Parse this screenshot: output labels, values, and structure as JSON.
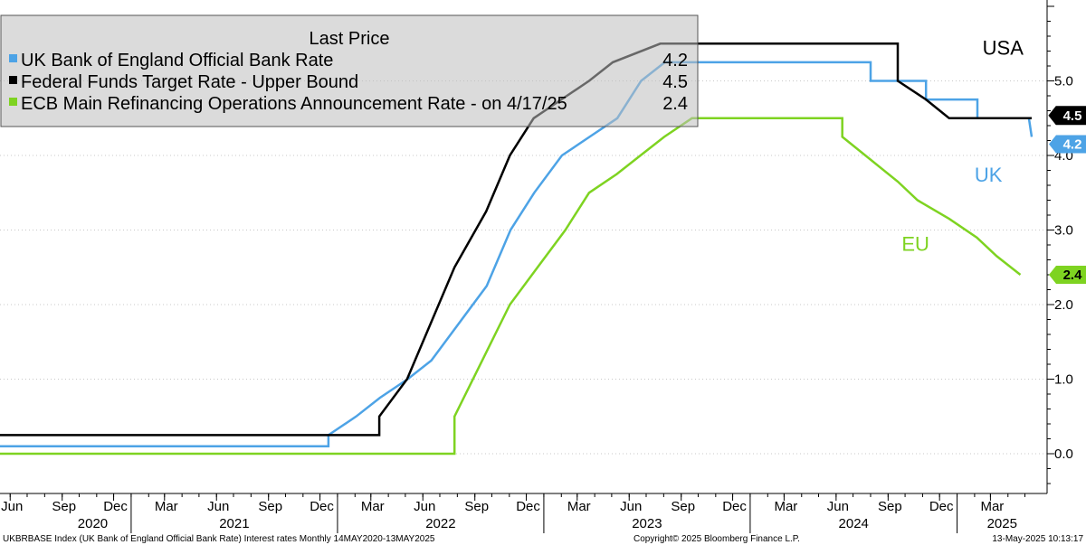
{
  "chart_data": {
    "type": "line",
    "legend": {
      "title": "Last Price",
      "placement": "top-left",
      "entries": [
        {
          "label": "UK Bank of England Official Bank Rate",
          "value": "4.2",
          "color": "#4da3e6"
        },
        {
          "label": "Federal Funds Target Rate - Upper Bound",
          "value": "4.5",
          "color": "#000000"
        },
        {
          "label": "ECB Main Refinancing Operations Announcement Rate -  on 4/17/25",
          "value": "2.4",
          "color": "#7ed321"
        }
      ]
    },
    "y_axis": {
      "position": "right",
      "range": [
        -0.5,
        6.0
      ],
      "ticks": [
        0.0,
        1.0,
        2.0,
        3.0,
        4.0,
        5.0
      ],
      "tick_labels": [
        "0.0",
        "1.0",
        "2.0",
        "3.0",
        "4.0",
        "5.0"
      ]
    },
    "x_axis": {
      "range": [
        "2020-05-14",
        "2025-05-13"
      ],
      "month_ticks": [
        {
          "date": "2020-06",
          "label": "Jun"
        },
        {
          "date": "2020-09",
          "label": "Sep"
        },
        {
          "date": "2020-12",
          "label": "Dec"
        },
        {
          "date": "2021-03",
          "label": "Mar"
        },
        {
          "date": "2021-06",
          "label": "Jun"
        },
        {
          "date": "2021-09",
          "label": "Sep"
        },
        {
          "date": "2021-12",
          "label": "Dec"
        },
        {
          "date": "2022-03",
          "label": "Mar"
        },
        {
          "date": "2022-06",
          "label": "Jun"
        },
        {
          "date": "2022-09",
          "label": "Sep"
        },
        {
          "date": "2022-12",
          "label": "Dec"
        },
        {
          "date": "2023-03",
          "label": "Mar"
        },
        {
          "date": "2023-06",
          "label": "Jun"
        },
        {
          "date": "2023-09",
          "label": "Sep"
        },
        {
          "date": "2023-12",
          "label": "Dec"
        },
        {
          "date": "2024-03",
          "label": "Mar"
        },
        {
          "date": "2024-06",
          "label": "Jun"
        },
        {
          "date": "2024-09",
          "label": "Sep"
        },
        {
          "date": "2024-12",
          "label": "Dec"
        },
        {
          "date": "2025-03",
          "label": "Mar"
        }
      ],
      "years": [
        "2020",
        "2021",
        "2022",
        "2023",
        "2024",
        "2025"
      ]
    },
    "grid": "horizontal dotted",
    "series": [
      {
        "key": "uk",
        "color": "#4da3e6",
        "last_value": "4.2",
        "points": [
          [
            "2020-05-14",
            0.1
          ],
          [
            "2021-12-16",
            0.1
          ],
          [
            "2021-12-16",
            0.25
          ],
          [
            "2022-02-03",
            0.5
          ],
          [
            "2022-03-17",
            0.75
          ],
          [
            "2022-05-05",
            1.0
          ],
          [
            "2022-06-16",
            1.25
          ],
          [
            "2022-08-04",
            1.75
          ],
          [
            "2022-09-22",
            2.25
          ],
          [
            "2022-11-03",
            3.0
          ],
          [
            "2022-12-15",
            3.5
          ],
          [
            "2023-02-02",
            4.0
          ],
          [
            "2023-03-23",
            4.25
          ],
          [
            "2023-05-11",
            4.5
          ],
          [
            "2023-06-22",
            5.0
          ],
          [
            "2023-08-03",
            5.25
          ],
          [
            "2024-08-01",
            5.25
          ],
          [
            "2024-08-01",
            5.0
          ],
          [
            "2024-11-07",
            5.0
          ],
          [
            "2024-11-07",
            4.75
          ],
          [
            "2025-02-06",
            4.75
          ],
          [
            "2025-02-06",
            4.5
          ],
          [
            "2025-05-08",
            4.5
          ],
          [
            "2025-05-13",
            4.25
          ]
        ]
      },
      {
        "key": "us",
        "color": "#000000",
        "last_value": "4.5",
        "points": [
          [
            "2020-05-14",
            0.25
          ],
          [
            "2022-03-16",
            0.25
          ],
          [
            "2022-03-16",
            0.5
          ],
          [
            "2022-05-04",
            1.0
          ],
          [
            "2022-06-15",
            1.75
          ],
          [
            "2022-07-27",
            2.5
          ],
          [
            "2022-09-21",
            3.25
          ],
          [
            "2022-11-02",
            4.0
          ],
          [
            "2022-12-14",
            4.5
          ],
          [
            "2023-02-01",
            4.75
          ],
          [
            "2023-03-22",
            5.0
          ],
          [
            "2023-05-03",
            5.25
          ],
          [
            "2023-07-26",
            5.5
          ],
          [
            "2024-09-18",
            5.5
          ],
          [
            "2024-09-18",
            5.0
          ],
          [
            "2024-11-07",
            4.75
          ],
          [
            "2024-12-18",
            4.5
          ],
          [
            "2025-05-13",
            4.5
          ]
        ]
      },
      {
        "key": "eu",
        "color": "#7ed321",
        "last_value": "2.4",
        "points": [
          [
            "2020-05-14",
            0.0
          ],
          [
            "2022-07-27",
            0.0
          ],
          [
            "2022-07-27",
            0.5
          ],
          [
            "2022-09-14",
            1.25
          ],
          [
            "2022-11-02",
            2.0
          ],
          [
            "2022-12-21",
            2.5
          ],
          [
            "2023-02-08",
            3.0
          ],
          [
            "2023-03-22",
            3.5
          ],
          [
            "2023-05-10",
            3.75
          ],
          [
            "2023-06-21",
            4.0
          ],
          [
            "2023-08-02",
            4.25
          ],
          [
            "2023-09-20",
            4.5
          ],
          [
            "2024-06-12",
            4.5
          ],
          [
            "2024-06-12",
            4.25
          ],
          [
            "2024-09-18",
            3.65
          ],
          [
            "2024-10-23",
            3.4
          ],
          [
            "2024-12-18",
            3.15
          ],
          [
            "2025-02-05",
            2.9
          ],
          [
            "2025-03-12",
            2.65
          ],
          [
            "2025-04-23",
            2.4
          ]
        ]
      }
    ],
    "annotations": [
      {
        "text": "USA",
        "color": "#000000",
        "at": [
          "2025-02-15",
          5.35
        ]
      },
      {
        "text": "UK",
        "color": "#4da3e6",
        "at": [
          "2025-02-01",
          3.65
        ]
      },
      {
        "text": "EU",
        "color": "#7ed321",
        "at": [
          "2024-09-25",
          2.72
        ]
      }
    ]
  },
  "footer": {
    "left": "UKBRBASE Index (UK Bank of England Official Bank Rate) Interest rates  Monthly 14MAY2020-13MAY2025",
    "center": "Copyright© 2025 Bloomberg Finance L.P.",
    "right": "13-May-2025 10:13:17"
  }
}
